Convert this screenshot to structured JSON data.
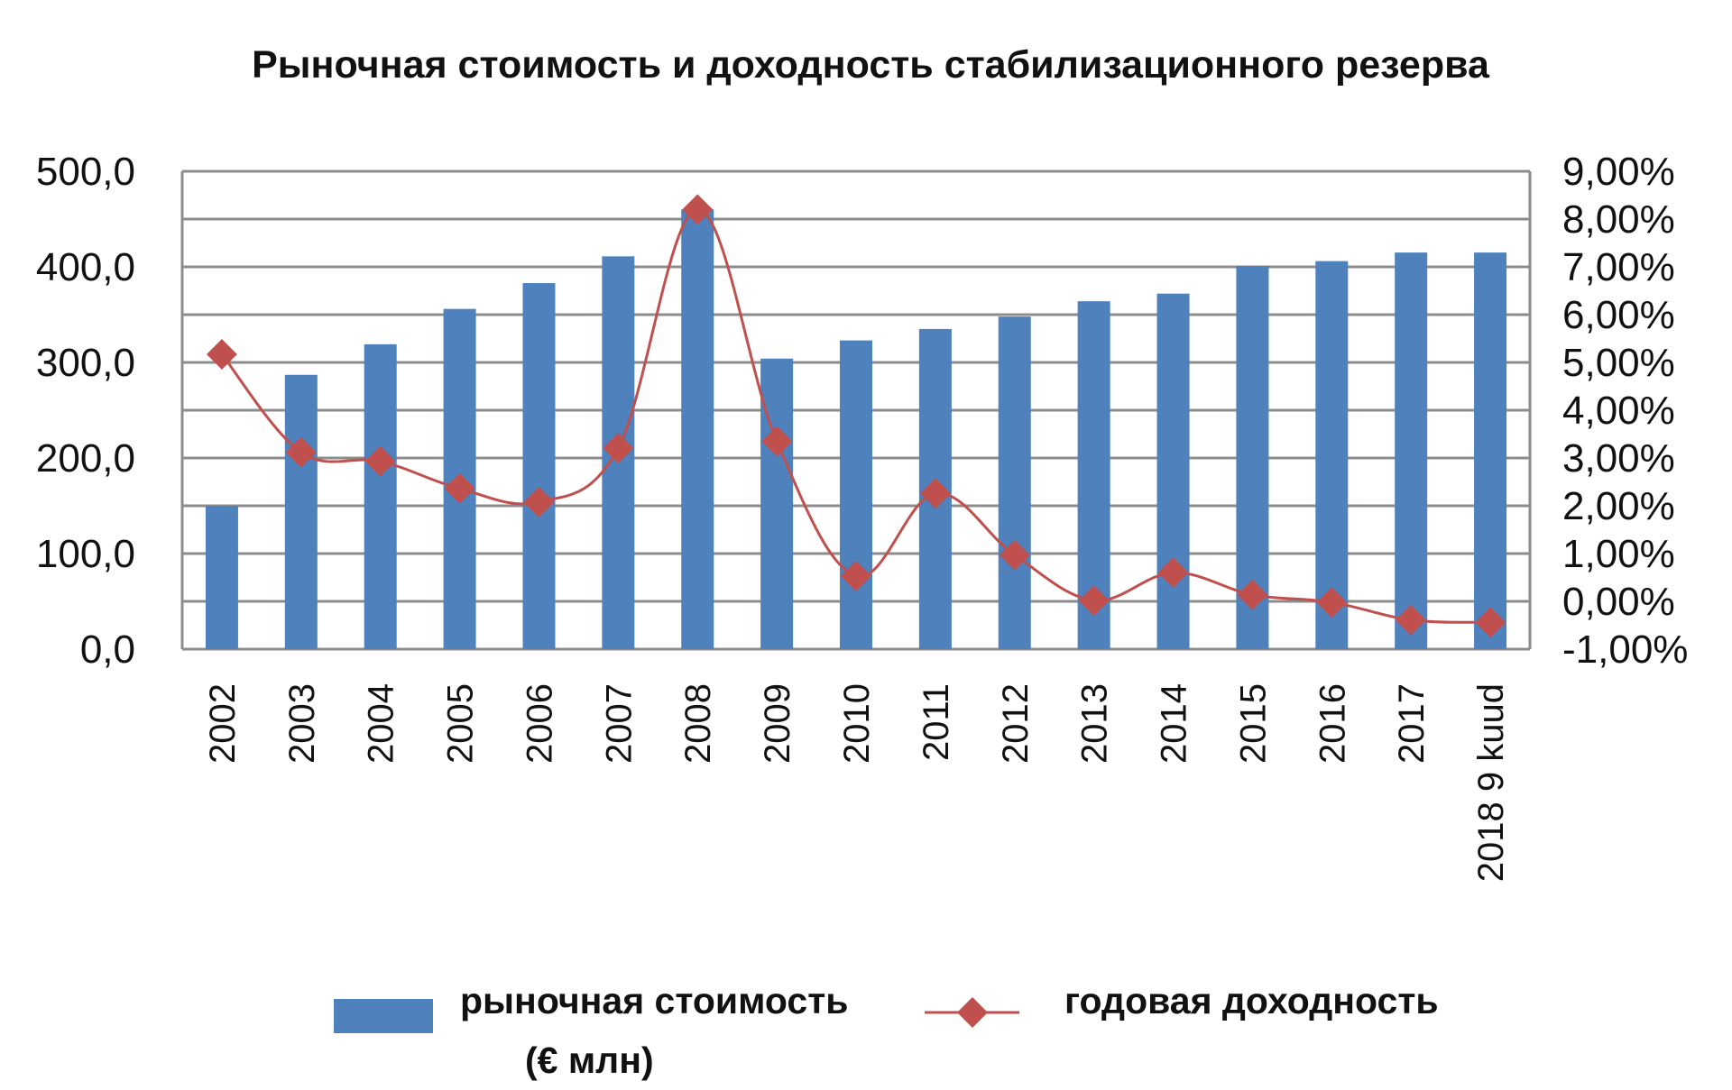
{
  "chart_data": {
    "type": "bar",
    "title": "Рыночная стоимость и доходность стабилизационного резерва",
    "categories": [
      "2002",
      "2003",
      "2004",
      "2005",
      "2006",
      "2007",
      "2008",
      "2009",
      "2010",
      "2011",
      "2012",
      "2013",
      "2014",
      "2015",
      "2016",
      "2017",
      "2018 9 kuud"
    ],
    "series": [
      {
        "name": "рыночная стоимость (€ млн)",
        "type": "bar",
        "axis": "left",
        "color": "#4f81bd",
        "values": [
          150,
          287,
          319,
          356,
          383,
          411,
          460,
          304,
          323,
          335,
          348,
          364,
          372,
          401,
          406,
          415,
          415
        ]
      },
      {
        "name": "годовая доходность",
        "type": "line",
        "axis": "right",
        "color": "#c0504d",
        "unit": "%",
        "values": [
          5.17,
          3.12,
          2.93,
          2.36,
          2.08,
          3.21,
          8.2,
          3.35,
          0.53,
          2.26,
          0.97,
          0.02,
          0.6,
          0.14,
          -0.02,
          -0.39,
          -0.44
        ]
      }
    ],
    "left_axis": {
      "ylim": [
        0,
        500
      ],
      "ticks": [
        "0,0",
        "100,0",
        "200,0",
        "300,0",
        "400,0",
        "500,0"
      ]
    },
    "right_axis": {
      "ylim": [
        -1,
        9
      ],
      "ticks": [
        "-1,00%",
        "0,00%",
        "1,00%",
        "2,00%",
        "3,00%",
        "4,00%",
        "5,00%",
        "6,00%",
        "7,00%",
        "8,00%",
        "9,00%"
      ]
    },
    "grid": true,
    "legend": {
      "position": "bottom",
      "bar_label_line1": "рыночная стоимость",
      "bar_label_line2": "(€ млн)",
      "line_label": "годовая доходность"
    }
  }
}
